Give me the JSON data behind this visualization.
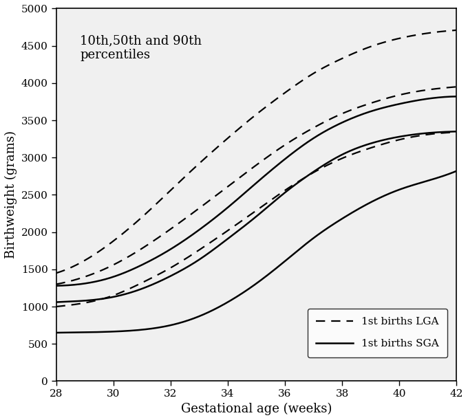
{
  "title": "10th,50th and 90th\npercentiles",
  "xlabel": "Gestational age (weeks)",
  "ylabel": "Birthweight (grams)",
  "xlim": [
    28,
    42
  ],
  "ylim": [
    0,
    5000
  ],
  "xticks": [
    28,
    30,
    32,
    34,
    36,
    38,
    40,
    42
  ],
  "yticks": [
    0,
    500,
    1000,
    1500,
    2000,
    2500,
    3000,
    3500,
    4000,
    4500,
    5000
  ],
  "lga_10th_x": [
    28,
    29,
    30,
    31,
    32,
    33,
    34,
    35,
    36,
    37,
    38,
    39,
    40,
    41,
    42
  ],
  "lga_10th_y": [
    1000,
    1050,
    1150,
    1320,
    1520,
    1760,
    2020,
    2290,
    2560,
    2800,
    2990,
    3130,
    3240,
    3310,
    3340
  ],
  "lga_50th_x": [
    28,
    29,
    30,
    31,
    32,
    33,
    34,
    35,
    36,
    37,
    38,
    39,
    40,
    41,
    42
  ],
  "lga_50th_y": [
    1300,
    1400,
    1560,
    1780,
    2040,
    2320,
    2610,
    2900,
    3170,
    3400,
    3590,
    3730,
    3840,
    3910,
    3950
  ],
  "lga_90th_x": [
    28,
    29,
    30,
    31,
    32,
    33,
    34,
    35,
    36,
    37,
    38,
    39,
    40,
    41,
    42
  ],
  "lga_90th_y": [
    1450,
    1620,
    1880,
    2200,
    2560,
    2920,
    3260,
    3580,
    3870,
    4130,
    4330,
    4490,
    4600,
    4670,
    4710
  ],
  "sga_10th_x": [
    28,
    29,
    30,
    31,
    32,
    33,
    34,
    35,
    36,
    37,
    38,
    39,
    40,
    41,
    42
  ],
  "sga_10th_y": [
    650,
    655,
    665,
    690,
    750,
    870,
    1060,
    1310,
    1610,
    1920,
    2180,
    2400,
    2570,
    2690,
    2820
  ],
  "sga_50th_x": [
    28,
    29,
    30,
    31,
    32,
    33,
    34,
    35,
    36,
    37,
    38,
    39,
    40,
    41,
    42
  ],
  "sga_50th_y": [
    1060,
    1080,
    1130,
    1240,
    1410,
    1630,
    1910,
    2210,
    2530,
    2810,
    3040,
    3190,
    3280,
    3330,
    3350
  ],
  "sga_90th_x": [
    28,
    29,
    30,
    31,
    32,
    33,
    34,
    35,
    36,
    37,
    38,
    39,
    40,
    41,
    42
  ],
  "sga_90th_y": [
    1280,
    1310,
    1400,
    1560,
    1770,
    2030,
    2330,
    2660,
    2980,
    3260,
    3470,
    3620,
    3720,
    3790,
    3820
  ],
  "lga_color": "#000000",
  "sga_color": "#000000",
  "lga_linestyle": "--",
  "sga_linestyle": "-",
  "lga_linewidth": 1.6,
  "sga_linewidth": 1.8,
  "legend_lga_label": "1st births LGA",
  "legend_sga_label": "1st births SGA",
  "bg_color": "#ffffff",
  "plot_bg_color": "#f0f0f0",
  "title_fontsize": 13,
  "label_fontsize": 13,
  "tick_fontsize": 11
}
